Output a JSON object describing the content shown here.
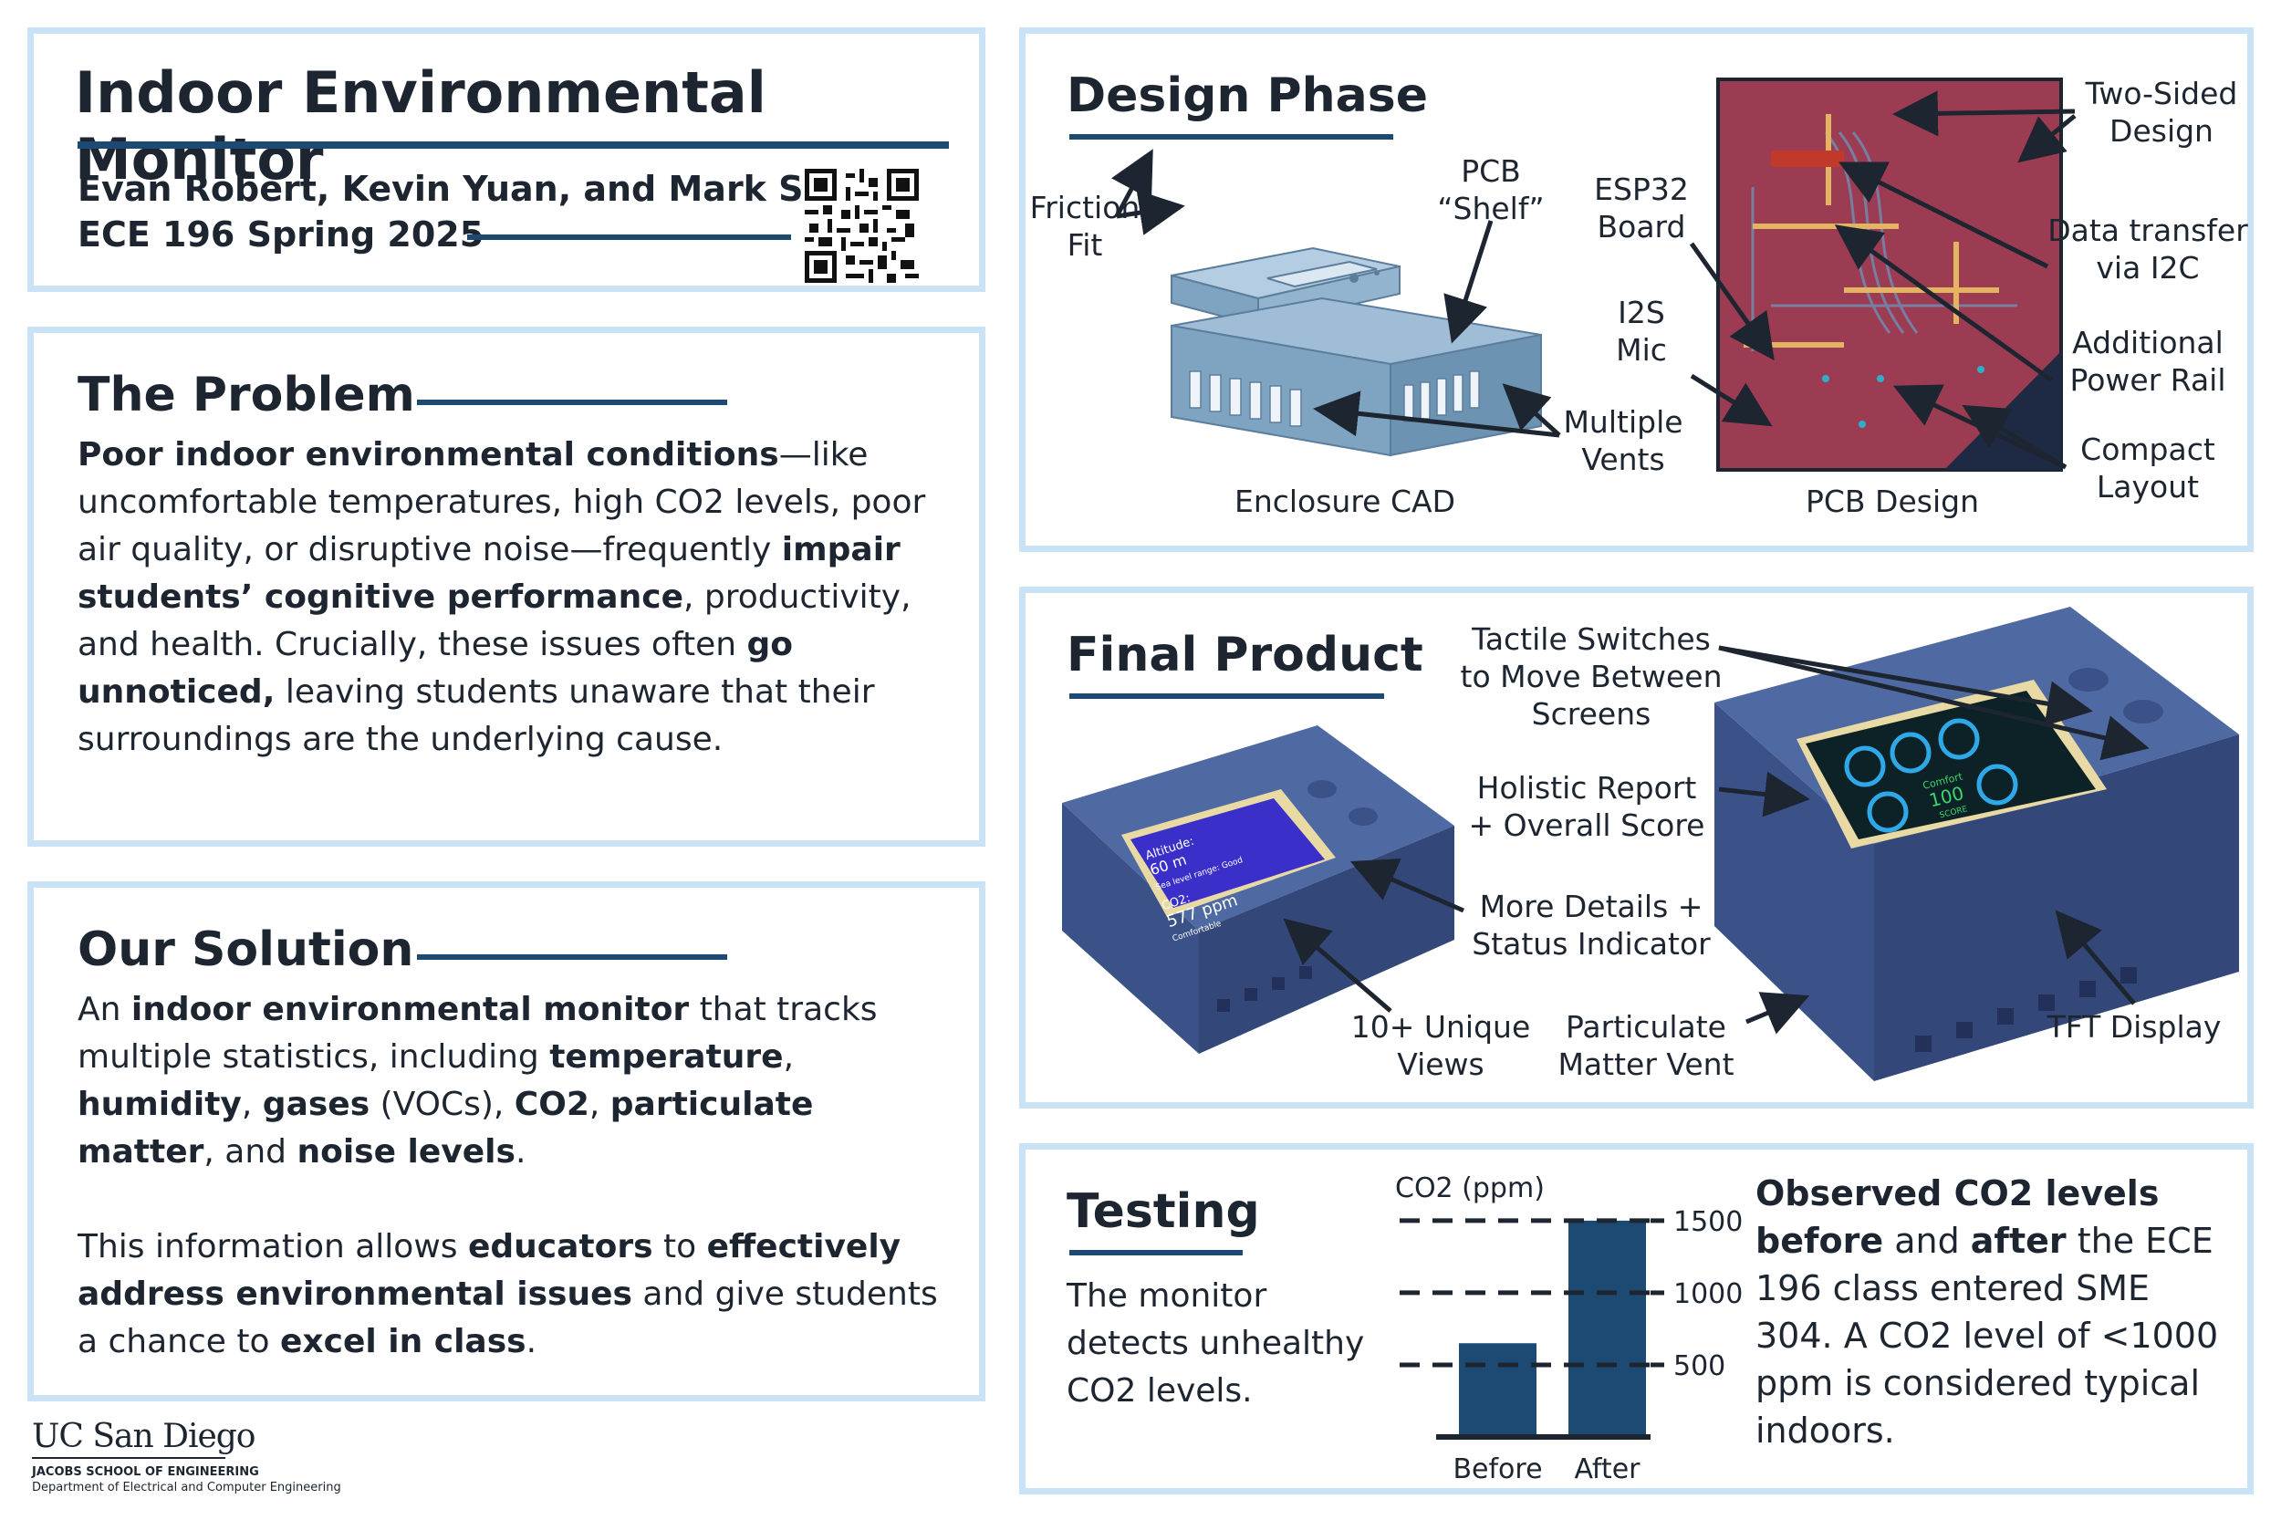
{
  "header": {
    "title": "Indoor Environmental Monitor",
    "authors": "Evan Robert, Kevin Yuan, and Mark Sui",
    "course": "ECE 196 Spring 2025"
  },
  "problem": {
    "heading": "The Problem",
    "p1_b1": "Poor indoor environmental conditions",
    "p1_t1": "—like uncomfortable temperatures, high CO2 levels, poor air quality, or disruptive noise—frequently ",
    "p1_b2": "impair students’ cognitive performance",
    "p1_t2": ", productivity, and health. Crucially, these issues often ",
    "p1_b3": "go unnoticed,",
    "p1_t3": " leaving students unaware that their surroundings are the underlying cause."
  },
  "solution": {
    "heading": "Our Solution",
    "a_t1": "An ",
    "a_b1": "indoor environmental monitor",
    "a_t2": " that tracks multiple statistics, including ",
    "a_b2": "temperature",
    "a_t3": ", ",
    "a_b3": "humidity",
    "a_t4": ", ",
    "a_b4": "gases",
    "a_t5": " (VOCs), ",
    "a_b5": "CO2",
    "a_t6": ", ",
    "a_b6": "particulate matter",
    "a_t7": ", and ",
    "a_b7": "noise levels",
    "a_t8": ".",
    "b_t1": "This information allows ",
    "b_b1": "educators",
    "b_t2": " to ",
    "b_b2": "effectively address environmental issues",
    "b_t3": " and give students a chance to ",
    "b_b3": "excel in class",
    "b_t4": "."
  },
  "logo": {
    "name": "UC San Diego",
    "school": "JACOBS SCHOOL OF ENGINEERING",
    "department": "Department of Electrical and Computer Engineering"
  },
  "design": {
    "heading": "Design Phase",
    "enclosure_caption": "Enclosure CAD",
    "pcb_caption": "PCB Design",
    "label_friction": "Friction\nFit",
    "label_shelf": "PCB\n“Shelf”",
    "label_vents": "Multiple\nVents",
    "label_esp32": "ESP32\nBoard",
    "label_mic": "I2S\nMic",
    "label_twosided": "Two-Sided\nDesign",
    "label_i2c": "Data transfer\nvia I2C",
    "label_power": "Additional\nPower Rail",
    "label_compact": "Compact\nLayout"
  },
  "final": {
    "heading": "Final Product",
    "label_switches": "Tactile Switches\nto Move Between\nScreens",
    "label_holistic": "Holistic Report\n+ Overall Score",
    "label_details": "More Details +\nStatus Indicator",
    "label_views": "10+ Unique\nViews",
    "label_pm": "Particulate\nMatter Vent",
    "label_tft": "TFT Display",
    "screen1": {
      "line1": "Altitude:",
      "line2": "60 m",
      "line3": "Sea level range: Good",
      "line4": "CO2:",
      "line5": "577 ppm",
      "line6": "Comfortable"
    },
    "screen2": {
      "line1": "Comfort",
      "line2": "100",
      "line3": "SCORE"
    }
  },
  "testing": {
    "heading": "Testing",
    "text": "The monitor detects unhealthy CO2 levels.",
    "obs_b1": "Observed CO2 levels before",
    "obs_t1": " and ",
    "obs_b2": "after",
    "obs_t2": " the ECE 196 class entered SME 304. A CO2 level of <1000 ppm is considered typical indoors."
  },
  "colors": {
    "panel_border": "#c9e2f5",
    "accent": "#1c4a72",
    "text": "#1c2530",
    "pcb": "#9c3c52",
    "enclosure": "#7ea4c2",
    "device": "#3f5a92"
  },
  "chart_data": {
    "type": "bar",
    "categories": [
      "Before",
      "After"
    ],
    "values": [
      650,
      1500
    ],
    "ylabel": "CO2 (ppm)",
    "yticks": [
      500,
      1000,
      1500
    ],
    "ylim": [
      0,
      1550
    ],
    "grid": "dashed"
  }
}
